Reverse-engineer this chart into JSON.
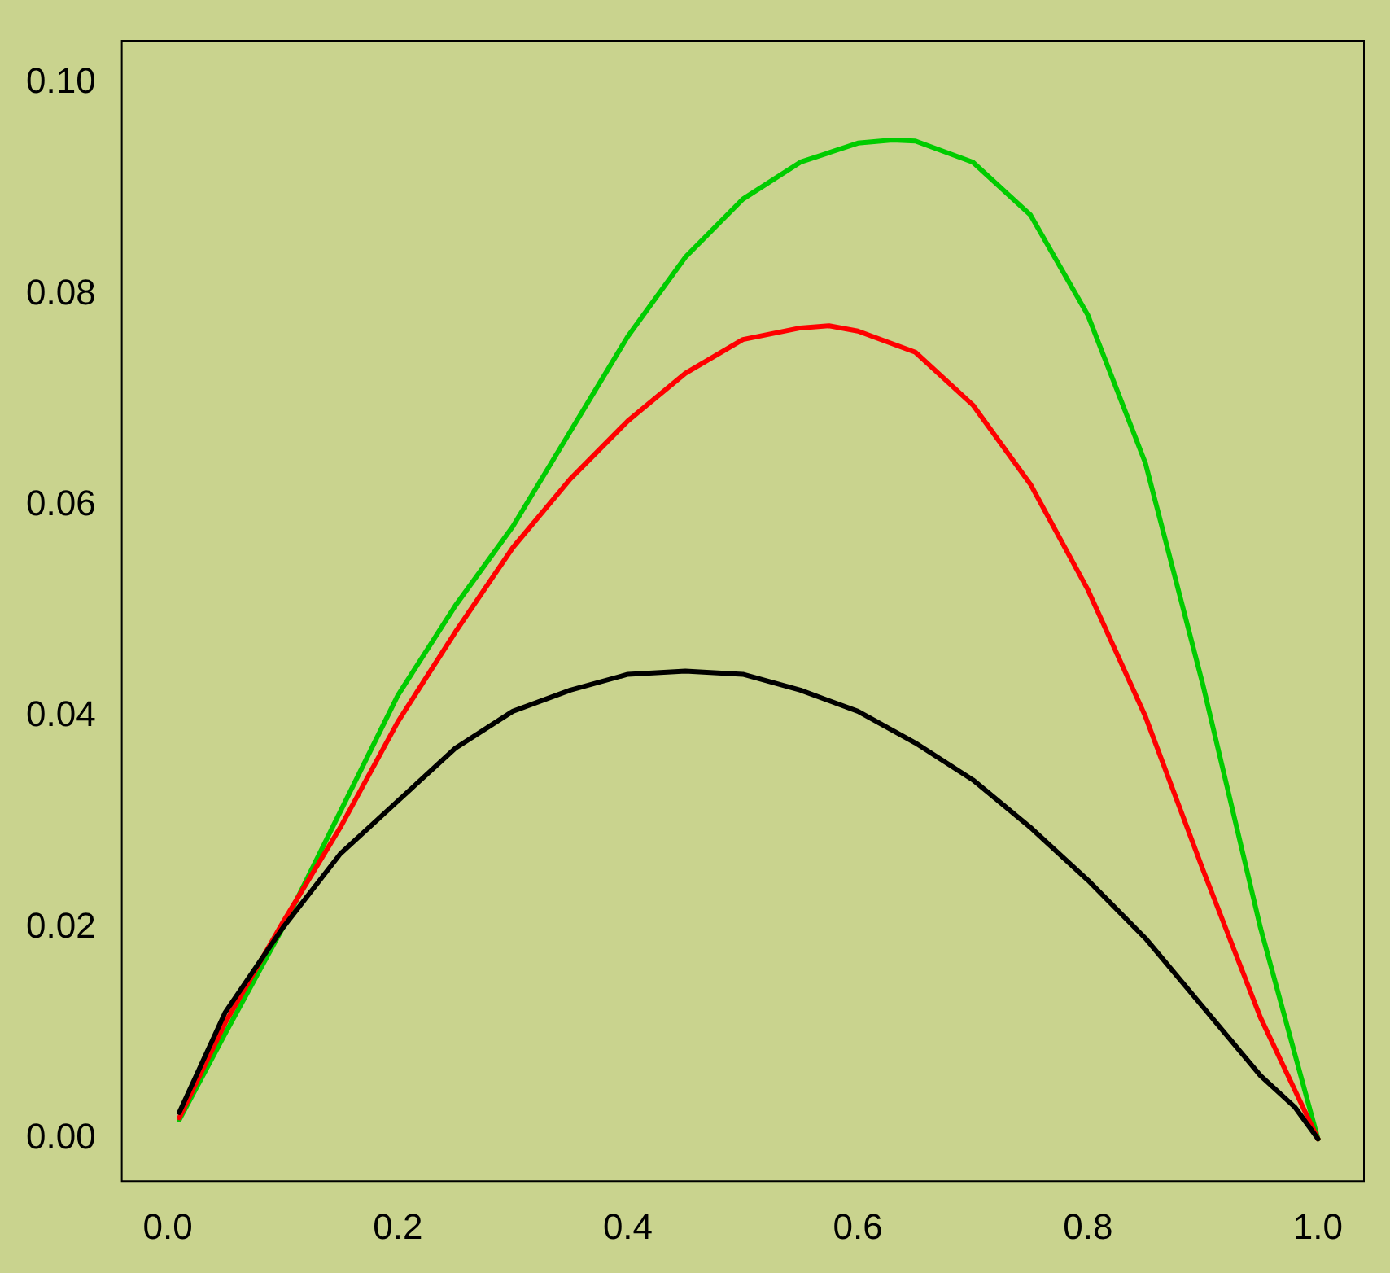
{
  "chart_data": {
    "type": "line",
    "xlim": [
      -0.04,
      1.04
    ],
    "ylim": [
      -0.004,
      0.104
    ],
    "xticks": [
      {
        "value": 0,
        "label": "0.0"
      },
      0.2,
      0.4,
      0.6,
      0.8,
      {
        "value": 1,
        "label": "1.0"
      }
    ],
    "yticks": [
      {
        "value": 0,
        "label": "0.00"
      },
      {
        "value": 0.02,
        "label": "0.02"
      },
      {
        "value": 0.04,
        "label": "0.04"
      },
      {
        "value": 0.06,
        "label": "0.06"
      },
      {
        "value": 0.08,
        "label": "0.08"
      },
      {
        "value": 0.1,
        "label": "0.10"
      }
    ],
    "grid": false,
    "legend": false,
    "marker": "none",
    "line_style": "solid",
    "series": [
      {
        "color": "#000000",
        "x": [
          0.01,
          0.05,
          0.1,
          0.15,
          0.2,
          0.25,
          0.3,
          0.35,
          0.4,
          0.45,
          0.5,
          0.55,
          0.6,
          0.65,
          0.7,
          0.75,
          0.8,
          0.85,
          0.9,
          0.95,
          0.98,
          1.0
        ],
        "values": [
          0.0025,
          0.012,
          0.02,
          0.027,
          0.032,
          0.037,
          0.0405,
          0.0425,
          0.044,
          0.0443,
          0.044,
          0.0425,
          0.0405,
          0.0375,
          0.034,
          0.0295,
          0.0245,
          0.019,
          0.0125,
          0.006,
          0.003,
          0.0
        ]
      },
      {
        "color": "#ff0000",
        "x": [
          0.01,
          0.05,
          0.1,
          0.15,
          0.2,
          0.25,
          0.3,
          0.35,
          0.4,
          0.45,
          0.5,
          0.55,
          0.575,
          0.6,
          0.65,
          0.7,
          0.75,
          0.8,
          0.85,
          0.9,
          0.95,
          1.0
        ],
        "values": [
          0.002,
          0.011,
          0.0205,
          0.0295,
          0.0395,
          0.048,
          0.056,
          0.0625,
          0.068,
          0.0725,
          0.0757,
          0.0768,
          0.077,
          0.0765,
          0.0745,
          0.0695,
          0.062,
          0.052,
          0.04,
          0.0255,
          0.0115,
          0.0
        ]
      },
      {
        "color": "#00cc00",
        "x": [
          0.01,
          0.05,
          0.1,
          0.15,
          0.2,
          0.25,
          0.3,
          0.35,
          0.4,
          0.45,
          0.5,
          0.55,
          0.6,
          0.63,
          0.65,
          0.7,
          0.75,
          0.8,
          0.85,
          0.9,
          0.95,
          1.0
        ],
        "values": [
          0.0018,
          0.01,
          0.02,
          0.031,
          0.042,
          0.0505,
          0.058,
          0.067,
          0.076,
          0.0835,
          0.089,
          0.0925,
          0.0943,
          0.0946,
          0.0945,
          0.0925,
          0.0875,
          0.078,
          0.064,
          0.043,
          0.02,
          0.0
        ]
      }
    ]
  }
}
